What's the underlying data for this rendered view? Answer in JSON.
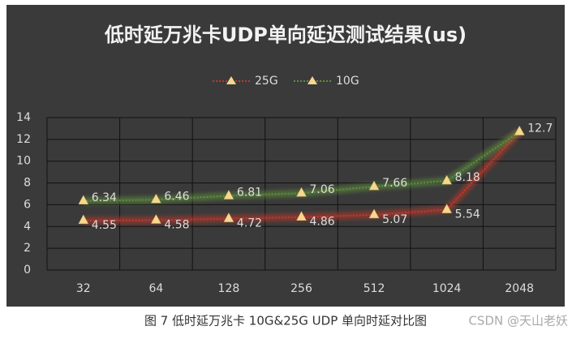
{
  "chart_data": {
    "type": "line",
    "title": "低时延万兆卡UDP单向延迟测试结果(us)",
    "categories": [
      "32",
      "64",
      "128",
      "256",
      "512",
      "1024",
      "2048"
    ],
    "series": [
      {
        "name": "25G",
        "color": "#c0392b",
        "values": [
          4.55,
          4.58,
          4.72,
          4.86,
          5.07,
          5.54,
          12.7
        ],
        "value_labels": [
          "4.55",
          "4.58",
          "4.72",
          "4.86",
          "5.07",
          "5.54",
          null
        ]
      },
      {
        "name": "10G",
        "color": "#5e8f3e",
        "values": [
          6.34,
          6.46,
          6.81,
          7.06,
          7.66,
          8.18,
          12.7
        ]
      }
    ],
    "ylim": [
      0,
      14
    ],
    "yticks": [
      0,
      2,
      4,
      6,
      8,
      10,
      12,
      14
    ],
    "grid": true,
    "legend": "top"
  },
  "caption": "图 7 低时延万兆卡 10G&25G UDP 单向时延对比图",
  "watermark": "CSDN @天山老妖"
}
